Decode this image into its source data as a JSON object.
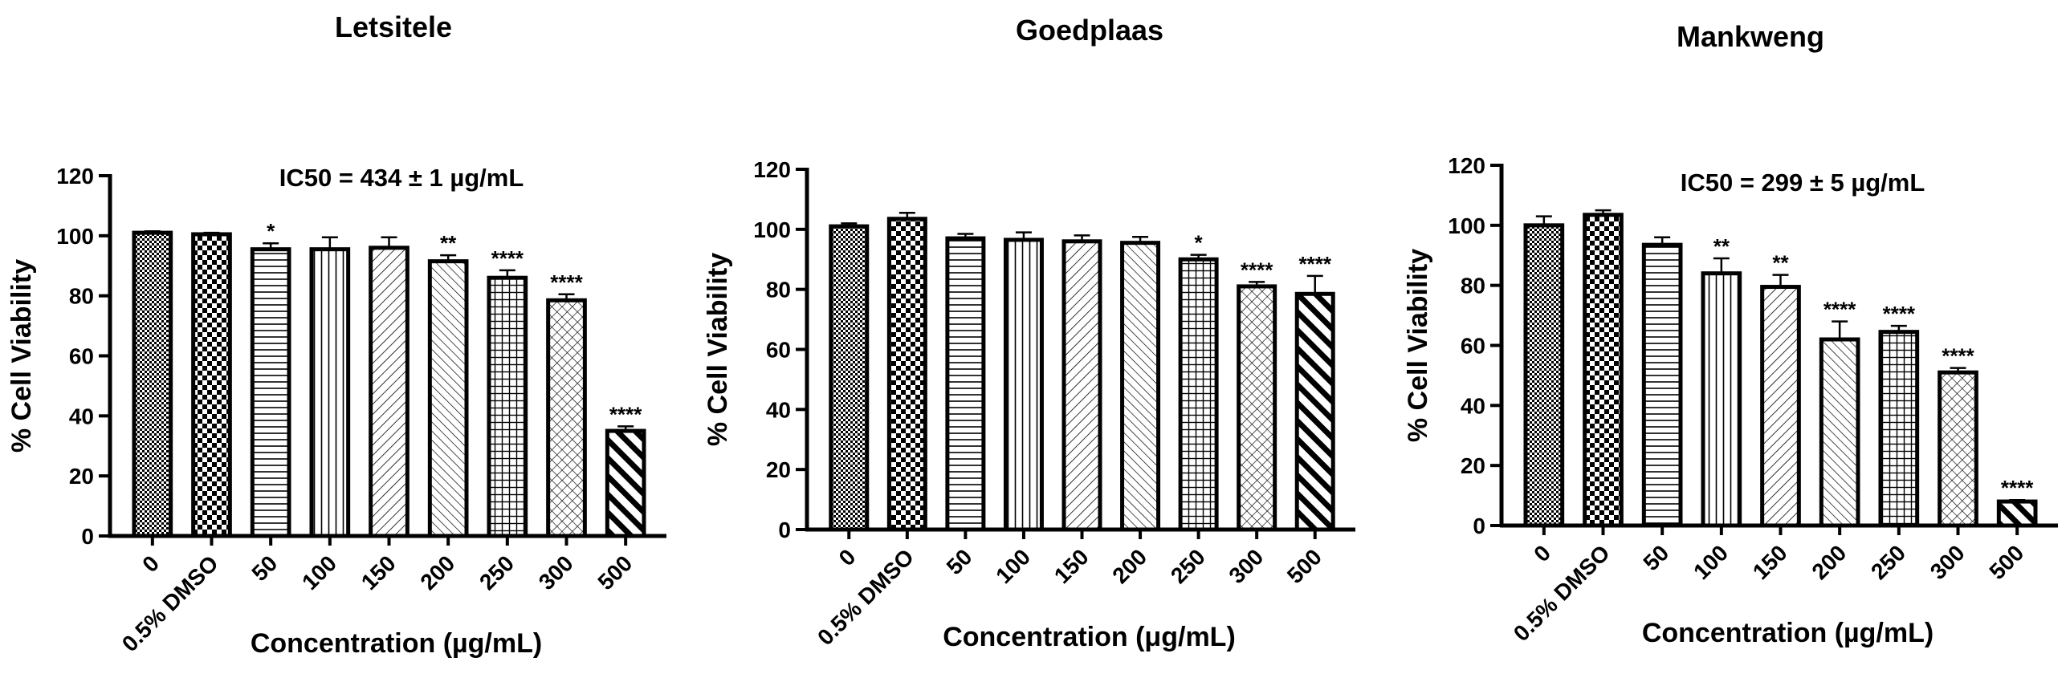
{
  "chart_data": [
    {
      "type": "bar",
      "title": "Letsitele",
      "annotation": "IC50 = 434 ± 1 µg/mL",
      "xlabel": "Concentration (µg/mL)",
      "ylabel": "% Cell Viability",
      "ylim": [
        0,
        120
      ],
      "yticks": [
        0,
        20,
        40,
        60,
        80,
        100,
        120
      ],
      "categories": [
        "0",
        "0.5% DMSO",
        "50",
        "100",
        "150",
        "200",
        "250",
        "300",
        "500"
      ],
      "values": [
        101,
        100.5,
        95.5,
        95.5,
        96,
        91.5,
        86,
        78.5,
        35
      ],
      "errors": [
        0.5,
        0.5,
        2,
        4,
        3.5,
        2,
        2.5,
        2,
        1.5
      ],
      "significance": [
        "",
        "",
        "*",
        "",
        "",
        "**",
        "****",
        "****",
        "****"
      ],
      "patterns": [
        "dense-check",
        "checker",
        "horizontal",
        "vertical",
        "diag-up",
        "diag-down",
        "grid",
        "crosshatch",
        "thick-diag"
      ]
    },
    {
      "type": "bar",
      "title": "Goedplaas",
      "annotation": "",
      "xlabel": "Concentration (μg/mL)",
      "ylabel": "% Cell Viability",
      "ylim": [
        0,
        120
      ],
      "yticks": [
        0,
        20,
        40,
        60,
        80,
        100,
        120
      ],
      "categories": [
        "0",
        "0.5% DMSO",
        "50",
        "100",
        "150",
        "200",
        "250",
        "300",
        "500"
      ],
      "values": [
        101,
        103.5,
        97,
        96.5,
        96,
        95.5,
        90,
        81,
        78.5
      ],
      "errors": [
        1,
        2,
        1.5,
        2.5,
        2,
        2,
        1.5,
        1.5,
        6
      ],
      "significance": [
        "",
        "",
        "",
        "",
        "",
        "",
        "*",
        "****",
        "****"
      ],
      "patterns": [
        "dense-check",
        "checker",
        "horizontal",
        "vertical",
        "diag-up",
        "diag-down",
        "grid",
        "crosshatch",
        "thick-diag"
      ]
    },
    {
      "type": "bar",
      "title": "Mankweng",
      "annotation": "IC50 = 299 ± 5 µg/mL",
      "xlabel": "Concentration (µg/mL)",
      "ylabel": "% Cell Viability",
      "ylim": [
        0,
        120
      ],
      "yticks": [
        0,
        20,
        40,
        60,
        80,
        100,
        120
      ],
      "categories": [
        "0",
        "0.5% DMSO",
        "50",
        "100",
        "150",
        "200",
        "250",
        "300",
        "500"
      ],
      "values": [
        100,
        103.5,
        93.5,
        84,
        79.5,
        62,
        64.5,
        51,
        8
      ],
      "errors": [
        3,
        1.5,
        2.5,
        5,
        4,
        6,
        2,
        1.5,
        0.5
      ],
      "significance": [
        "",
        "",
        "",
        "**",
        "**",
        "****",
        "****",
        "****",
        "****"
      ],
      "patterns": [
        "dense-check",
        "checker",
        "horizontal",
        "vertical",
        "diag-up",
        "diag-down",
        "grid",
        "crosshatch",
        "thick-diag"
      ]
    }
  ]
}
